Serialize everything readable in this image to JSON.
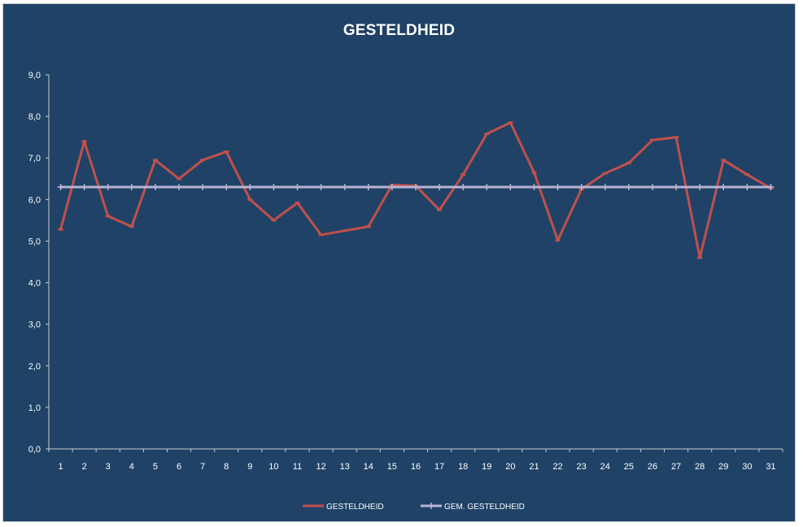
{
  "chart_data": {
    "type": "line",
    "title": "GESTELDHEID",
    "xlabel": "",
    "ylabel": "",
    "ylim": [
      0,
      9
    ],
    "y_tick_step": 1,
    "y_tick_labels": [
      "0,0",
      "1,0",
      "2,0",
      "3,0",
      "4,0",
      "5,0",
      "6,0",
      "7,0",
      "8,0",
      "9,0"
    ],
    "categories": [
      "1",
      "2",
      "3",
      "4",
      "5",
      "6",
      "7",
      "8",
      "9",
      "10",
      "11",
      "12",
      "13",
      "14",
      "15",
      "16",
      "17",
      "18",
      "19",
      "20",
      "21",
      "22",
      "23",
      "24",
      "25",
      "26",
      "27",
      "28",
      "29",
      "30",
      "31"
    ],
    "grid": false,
    "legend_position": "bottom",
    "series": [
      {
        "name": "GESTELDHEID",
        "color": "#c0504d",
        "marker": "dash",
        "values": [
          5.28,
          7.4,
          5.6,
          5.35,
          6.95,
          6.5,
          6.95,
          7.15,
          6.0,
          5.5,
          5.92,
          5.15,
          5.25,
          5.35,
          6.35,
          6.33,
          5.75,
          6.6,
          7.58,
          7.85,
          6.65,
          5.02,
          6.25,
          6.63,
          6.88,
          7.43,
          7.5,
          4.6,
          6.95,
          6.6,
          6.27
        ]
      },
      {
        "name": "GEM. GESTELDHEID",
        "color": "#b9b4d6",
        "marker": "plus",
        "values": [
          6.3,
          6.3,
          6.3,
          6.3,
          6.3,
          6.3,
          6.3,
          6.3,
          6.3,
          6.3,
          6.3,
          6.3,
          6.3,
          6.3,
          6.3,
          6.3,
          6.3,
          6.3,
          6.3,
          6.3,
          6.3,
          6.3,
          6.3,
          6.3,
          6.3,
          6.3,
          6.3,
          6.3,
          6.3,
          6.3,
          6.3
        ]
      }
    ],
    "colors": {
      "background": "#1f4266",
      "axis": "#c8ccd2",
      "text": "#ffffff"
    }
  }
}
